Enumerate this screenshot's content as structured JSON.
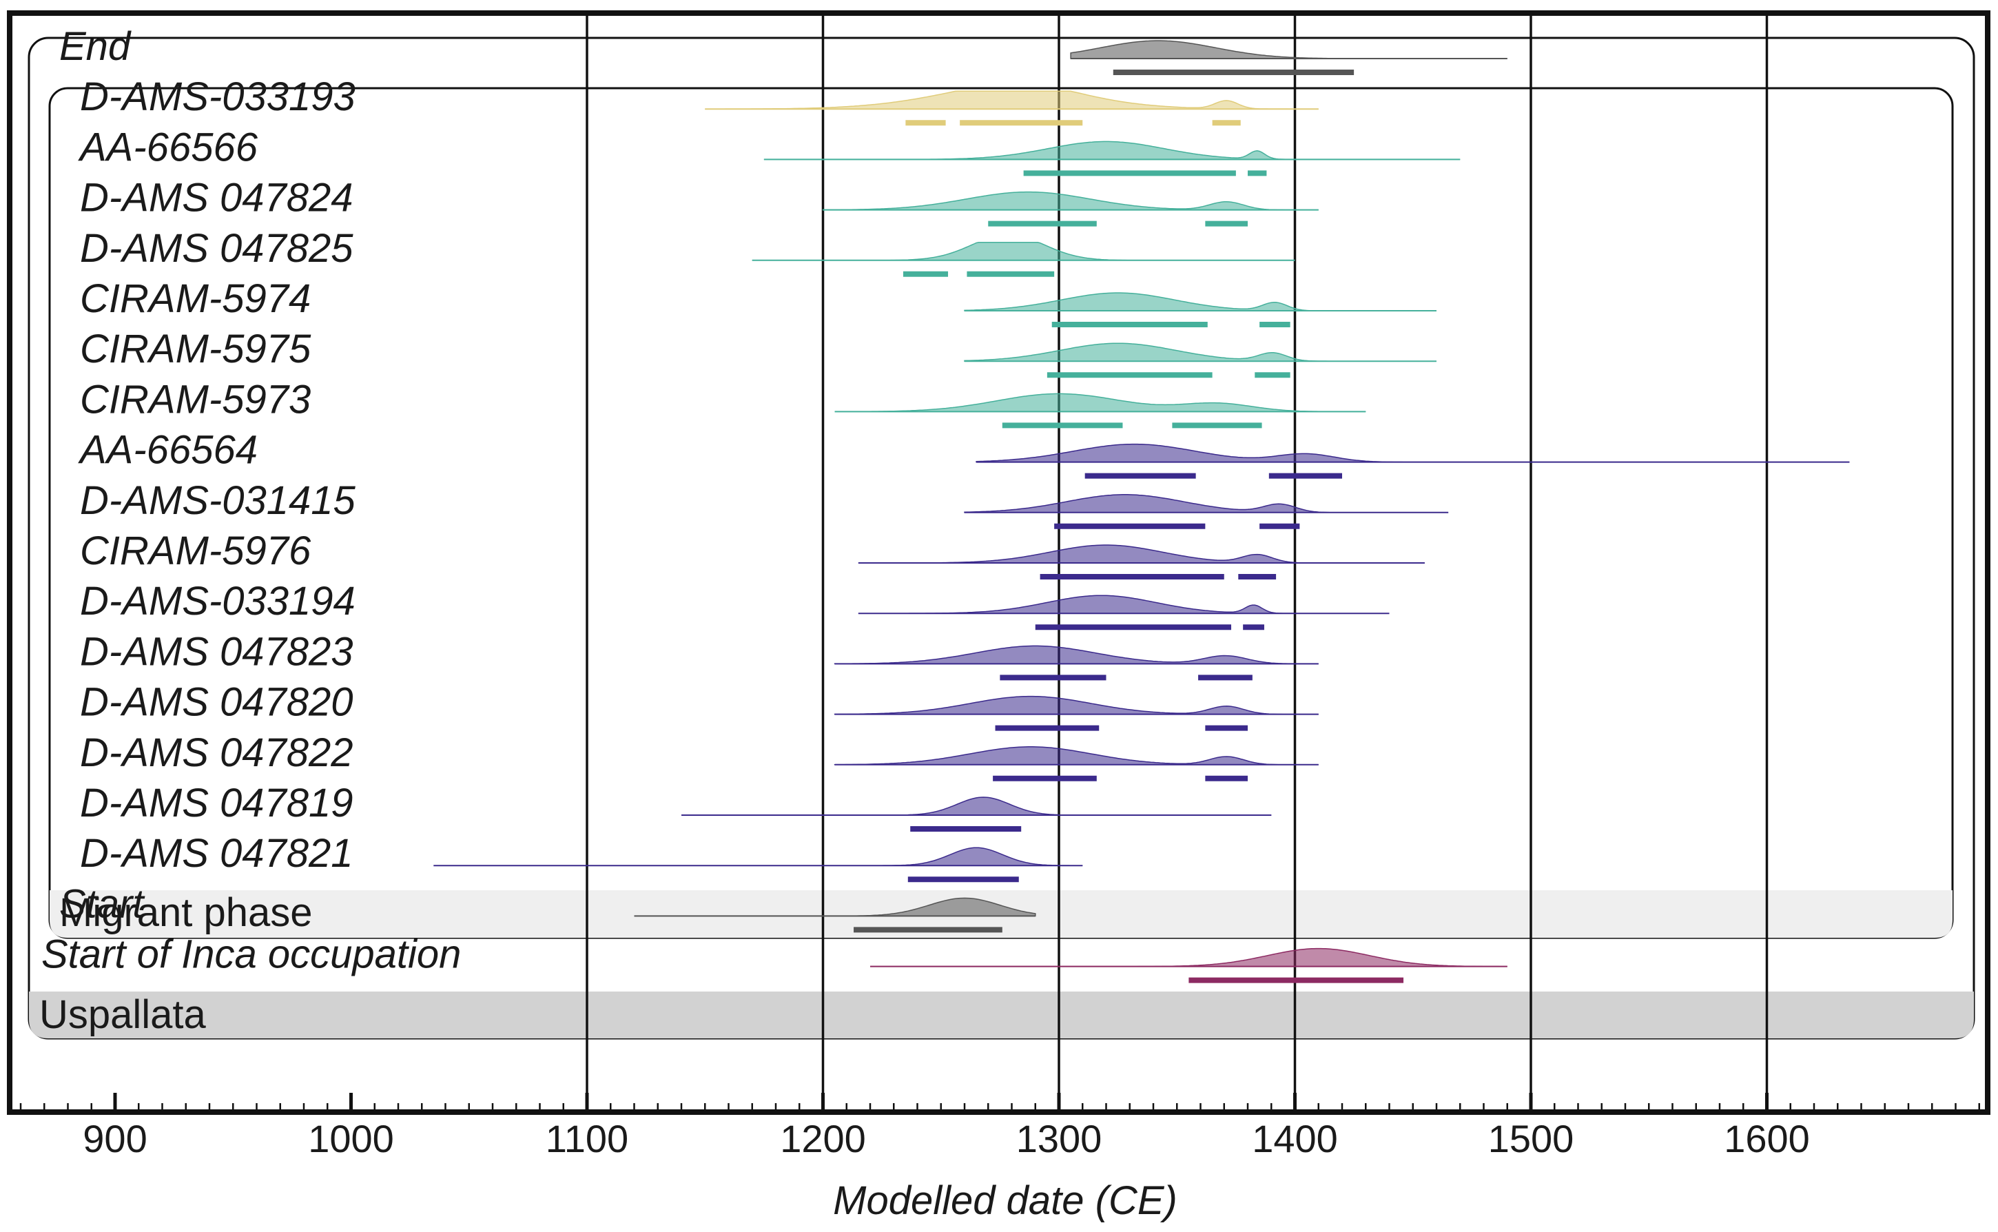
{
  "chart_data": {
    "type": "ridgeline",
    "xlabel": "Modelled date (CE)",
    "xlim": [
      855,
      1695
    ],
    "xticks": [
      900,
      1000,
      1100,
      1200,
      1300,
      1400,
      1500,
      1600
    ],
    "grid": true,
    "colors": {
      "end": "#555555",
      "yellow": "#e0cc7a",
      "teal": "#45b09b",
      "purple": "#3b2a8c",
      "inca": "#8c2a62"
    },
    "phases": [
      {
        "id": "migrant",
        "label": "Migrant phase"
      },
      {
        "id": "uspallata",
        "label": "Uspallata"
      }
    ],
    "series": [
      {
        "name": "End",
        "group": "end",
        "range": [
          1305,
          1490
        ],
        "peak": 1342,
        "hpd": [
          [
            1323,
            1425
          ]
        ]
      },
      {
        "name": "D-AMS-033193",
        "group": "yellow",
        "range": [
          1150,
          1410
        ],
        "peak": 1278,
        "hpd": [
          [
            1235,
            1252
          ],
          [
            1258,
            1310
          ],
          [
            1365,
            1377
          ]
        ]
      },
      {
        "name": "AA-66566",
        "group": "teal",
        "range": [
          1175,
          1470
        ],
        "peak": 1320,
        "hpd": [
          [
            1285,
            1375
          ],
          [
            1380,
            1388
          ]
        ]
      },
      {
        "name": "D-AMS 047824",
        "group": "teal",
        "range": [
          1200,
          1410
        ],
        "peak": 1287,
        "hpd": [
          [
            1270,
            1316
          ],
          [
            1362,
            1380
          ]
        ]
      },
      {
        "name": "D-AMS 047825",
        "group": "teal",
        "range": [
          1170,
          1400
        ],
        "peak": 1278,
        "hpd": [
          [
            1234,
            1253
          ],
          [
            1261,
            1298
          ]
        ]
      },
      {
        "name": "CIRAM-5974",
        "group": "teal",
        "range": [
          1260,
          1460
        ],
        "peak": 1325,
        "hpd": [
          [
            1297,
            1363
          ],
          [
            1385,
            1398
          ]
        ]
      },
      {
        "name": "CIRAM-5975",
        "group": "teal",
        "range": [
          1260,
          1460
        ],
        "peak": 1325,
        "hpd": [
          [
            1295,
            1365
          ],
          [
            1383,
            1398
          ]
        ]
      },
      {
        "name": "CIRAM-5973",
        "group": "teal",
        "range": [
          1205,
          1430
        ],
        "peak": 1300,
        "hpd": [
          [
            1276,
            1327
          ],
          [
            1348,
            1386
          ]
        ]
      },
      {
        "name": "AA-66564",
        "group": "purple",
        "range": [
          1265,
          1635
        ],
        "peak": 1332,
        "hpd": [
          [
            1311,
            1358
          ],
          [
            1389,
            1420
          ]
        ]
      },
      {
        "name": "D-AMS-031415",
        "group": "purple",
        "range": [
          1260,
          1465
        ],
        "peak": 1328,
        "hpd": [
          [
            1298,
            1362
          ],
          [
            1385,
            1402
          ]
        ]
      },
      {
        "name": "CIRAM-5976",
        "group": "purple",
        "range": [
          1215,
          1455
        ],
        "peak": 1320,
        "hpd": [
          [
            1292,
            1370
          ],
          [
            1376,
            1392
          ]
        ]
      },
      {
        "name": "D-AMS-033194",
        "group": "purple",
        "range": [
          1215,
          1440
        ],
        "peak": 1318,
        "hpd": [
          [
            1290,
            1373
          ],
          [
            1378,
            1387
          ]
        ]
      },
      {
        "name": "D-AMS 047823",
        "group": "purple",
        "range": [
          1205,
          1410
        ],
        "peak": 1290,
        "hpd": [
          [
            1275,
            1320
          ],
          [
            1359,
            1382
          ]
        ]
      },
      {
        "name": "D-AMS 047820",
        "group": "purple",
        "range": [
          1205,
          1410
        ],
        "peak": 1288,
        "hpd": [
          [
            1273,
            1317
          ],
          [
            1362,
            1380
          ]
        ]
      },
      {
        "name": "D-AMS 047822",
        "group": "purple",
        "range": [
          1205,
          1410
        ],
        "peak": 1288,
        "hpd": [
          [
            1272,
            1316
          ],
          [
            1362,
            1380
          ]
        ]
      },
      {
        "name": "D-AMS 047819",
        "group": "purple",
        "range": [
          1140,
          1390
        ],
        "peak": 1268,
        "hpd": [
          [
            1237,
            1284
          ]
        ]
      },
      {
        "name": "D-AMS 047821",
        "group": "purple",
        "range": [
          1035,
          1310
        ],
        "peak": 1265,
        "hpd": [
          [
            1236,
            1283
          ]
        ]
      },
      {
        "name": "Start",
        "group": "end",
        "range": [
          1120,
          1290
        ],
        "peak": 1260,
        "hpd": [
          [
            1213,
            1276
          ]
        ]
      },
      {
        "name": "Start of Inca occupation",
        "group": "inca",
        "range": [
          1220,
          1490
        ],
        "peak": 1410,
        "hpd": [
          [
            1355,
            1446
          ]
        ]
      }
    ]
  }
}
